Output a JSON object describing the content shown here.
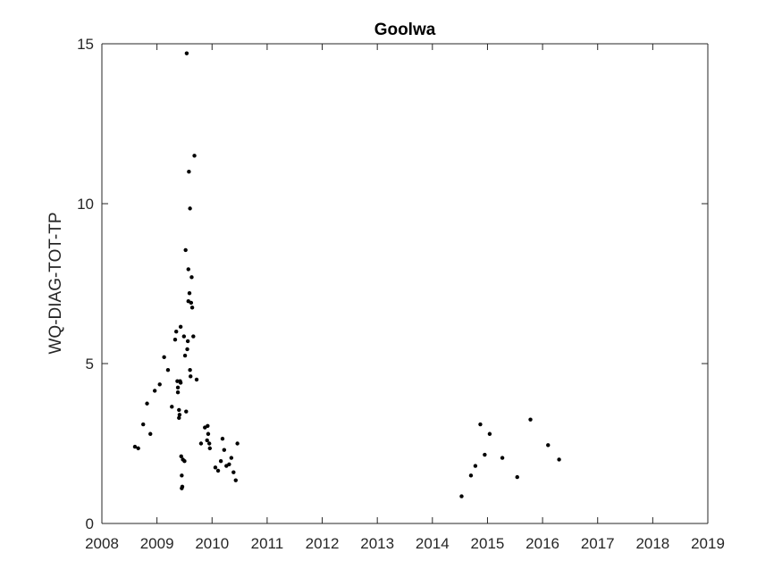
{
  "chart_data": {
    "type": "scatter",
    "title": "Goolwa",
    "xlabel": "",
    "ylabel": "WQ-DIAG-TOT-TP",
    "xlim": [
      2008,
      2019
    ],
    "ylim": [
      0,
      15
    ],
    "xticks": [
      "2008",
      "2009",
      "2010",
      "2011",
      "2012",
      "2013",
      "2014",
      "2015",
      "2016",
      "2017",
      "2018",
      "2019"
    ],
    "yticks": [
      "0",
      "5",
      "10",
      "15"
    ],
    "grid": false,
    "marker_color": "#000000",
    "series": [
      {
        "x": [
          2008.6,
          2008.66,
          2008.75,
          2008.82,
          2008.88,
          2008.96,
          2009.05,
          2009.13,
          2009.2,
          2009.27,
          2009.33,
          2009.35,
          2009.37,
          2009.38,
          2009.38,
          2009.4,
          2009.4,
          2009.41,
          2009.42,
          2009.43,
          2009.43,
          2009.44,
          2009.45,
          2009.45,
          2009.46,
          2009.47,
          2009.49,
          2009.5,
          2009.51,
          2009.52,
          2009.53,
          2009.54,
          2009.55,
          2009.56,
          2009.57,
          2009.57,
          2009.58,
          2009.59,
          2009.6,
          2009.6,
          2009.61,
          2009.62,
          2009.63,
          2009.64,
          2009.66,
          2009.68,
          2009.72,
          2009.8,
          2009.87,
          2009.91,
          2009.92,
          2009.93,
          2009.95,
          2009.96,
          2010.06,
          2010.11,
          2010.16,
          2010.19,
          2010.22,
          2010.26,
          2010.31,
          2010.35,
          2010.39,
          2010.43,
          2010.46,
          2014.53,
          2014.7,
          2014.78,
          2014.87,
          2014.95,
          2015.04,
          2015.27,
          2015.54,
          2015.78,
          2016.1,
          2016.3
        ],
        "y": [
          2.4,
          2.35,
          3.1,
          3.75,
          2.8,
          4.15,
          4.35,
          5.2,
          4.8,
          3.65,
          5.75,
          6.0,
          4.45,
          4.25,
          4.1,
          3.55,
          3.3,
          3.4,
          4.45,
          6.15,
          4.4,
          2.1,
          1.5,
          1.1,
          1.15,
          2.0,
          5.85,
          1.95,
          5.25,
          8.55,
          3.5,
          14.7,
          5.45,
          5.7,
          7.95,
          6.95,
          11.0,
          7.2,
          9.85,
          4.8,
          4.6,
          6.9,
          7.7,
          6.75,
          5.85,
          11.5,
          4.5,
          2.5,
          3.0,
          2.6,
          3.05,
          2.8,
          2.5,
          2.35,
          1.75,
          1.65,
          1.95,
          2.65,
          2.3,
          1.8,
          1.85,
          2.05,
          1.6,
          1.35,
          2.5,
          0.85,
          1.5,
          1.8,
          3.1,
          2.15,
          2.8,
          2.05,
          1.45,
          3.25,
          2.45,
          2.0
        ]
      }
    ]
  }
}
